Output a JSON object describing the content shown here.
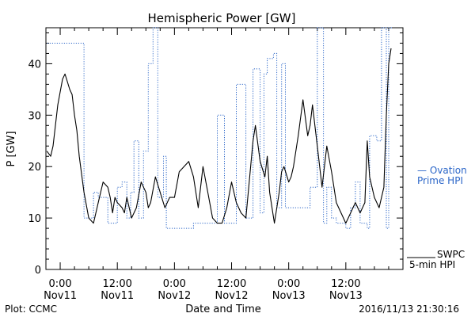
{
  "chart_data": {
    "type": "line",
    "title": "Hemispheric Power [GW]",
    "xlabel": "Date and Time",
    "ylabel": "P [GW]",
    "ylim": [
      0,
      47
    ],
    "xlim_hours": [
      -3,
      72
    ],
    "yticks": [
      0,
      10,
      20,
      30,
      40
    ],
    "yticklabels": [
      "0",
      "10",
      "20",
      "30",
      "40"
    ],
    "xticks": [
      {
        "hour": 0,
        "time": "0:00",
        "date": "Nov11"
      },
      {
        "hour": 12,
        "time": "12:00",
        "date": "Nov11"
      },
      {
        "hour": 24,
        "time": "0:00",
        "date": "Nov12"
      },
      {
        "hour": 36,
        "time": "12:00",
        "date": "Nov12"
      },
      {
        "hour": 48,
        "time": "0:00",
        "date": "Nov13"
      },
      {
        "hour": 60,
        "time": "12:00",
        "date": "Nov13"
      }
    ],
    "grid": false,
    "legend_position": "right",
    "series": [
      {
        "name": "Ovation Prime HPI",
        "legend_lines": [
          "— Ovation",
          "Prime HPI"
        ],
        "color": "#2b66c8",
        "style": "dotted-step",
        "x": [
          -2.7,
          2.2,
          5,
          7,
          8,
          10,
          11,
          12,
          13,
          14,
          14.8,
          15.5,
          16.5,
          17.5,
          18.5,
          19.5,
          20.5,
          21.7,
          22.3,
          24,
          26.5,
          28,
          30,
          31.5,
          33,
          34.5,
          36,
          37,
          39,
          40.5,
          42,
          42.8,
          43.5,
          44.8,
          45.5,
          46.5,
          47.3,
          48,
          50,
          52.3,
          52.5,
          54,
          55.3,
          56,
          57,
          58,
          60,
          61,
          62,
          63,
          64.5,
          65,
          66.5,
          67.5,
          68.5,
          69
        ],
        "y": [
          44,
          44,
          10,
          15,
          14,
          9,
          9,
          16,
          17,
          10,
          15,
          25,
          10,
          23,
          40,
          47,
          14,
          22,
          8,
          8,
          8,
          9,
          9,
          9,
          30,
          9,
          9,
          36,
          10,
          39,
          11,
          38,
          41,
          42,
          12,
          40,
          12,
          12,
          12,
          12,
          16,
          47,
          9,
          16,
          10,
          9,
          8,
          12,
          17,
          9,
          8,
          26,
          25,
          47,
          8,
          47
        ]
      },
      {
        "name": "SWPC 5-min HPI",
        "legend_lines": [
          "SWPC",
          "5-min HPI"
        ],
        "color": "#000000",
        "style": "solid",
        "x": [
          -2.8,
          -2,
          -1.5,
          -0.5,
          0.5,
          1,
          2,
          2.5,
          3,
          3.5,
          4,
          5,
          6,
          7,
          8,
          9,
          10,
          10.5,
          11,
          11.5,
          12,
          13,
          13.5,
          14,
          14.5,
          15,
          16,
          17,
          18,
          18.5,
          19,
          20,
          21,
          22,
          23,
          24,
          25,
          26,
          27,
          28,
          29,
          30,
          31,
          32,
          33,
          34,
          35,
          36,
          37,
          38,
          39,
          40,
          40.5,
          41,
          42,
          43,
          43.5,
          44,
          45,
          46,
          46.5,
          47,
          48,
          48.5,
          49,
          50,
          51,
          52,
          52.5,
          53,
          54,
          55,
          56,
          57,
          58,
          59,
          60,
          61,
          62,
          63,
          64,
          64.5,
          65,
          66,
          67,
          68,
          68.5,
          69,
          69.5
        ],
        "y": [
          23,
          22,
          24,
          32,
          37,
          38,
          35,
          34,
          30,
          27,
          22,
          15,
          10,
          9,
          13,
          17,
          16,
          14,
          11,
          14,
          13,
          12,
          11,
          14,
          12,
          10,
          12,
          17,
          15,
          12,
          13,
          18,
          15,
          12,
          14,
          14,
          19,
          20,
          21,
          18,
          12,
          20,
          15,
          10,
          9,
          9,
          12,
          17,
          13,
          11,
          10,
          20,
          25,
          28,
          21,
          18,
          22,
          15,
          9,
          15,
          19,
          20,
          17,
          18,
          20,
          26,
          33,
          26,
          28,
          32,
          24,
          16,
          24,
          19,
          13,
          11,
          9,
          11,
          13,
          11,
          13,
          25,
          18,
          14,
          12,
          16,
          30,
          40,
          43
        ]
      }
    ],
    "footer_left": "Plot: CCMC",
    "footer_right": "2016/11/13 21:30:16"
  }
}
